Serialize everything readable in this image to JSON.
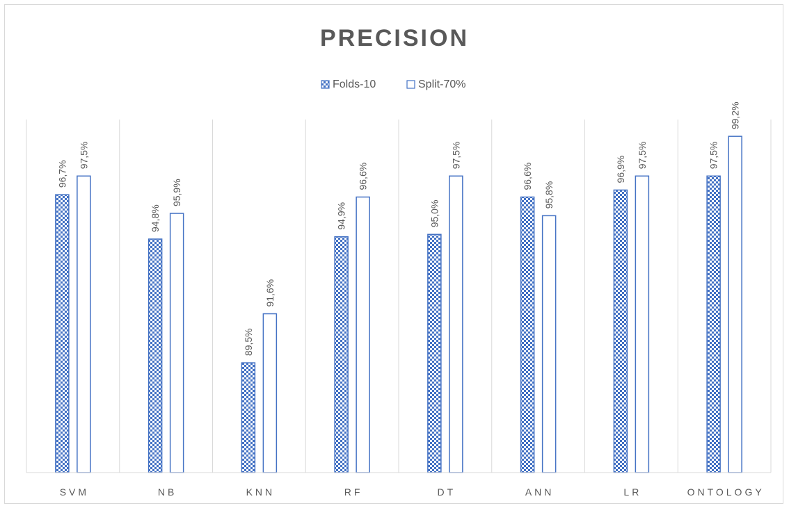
{
  "chart_data": {
    "type": "bar",
    "title": "PRECISION",
    "categories": [
      "SVM",
      "NB",
      "KNN",
      "RF",
      "DT",
      "ANN",
      "LR",
      "ONTOLOGY"
    ],
    "series": [
      {
        "name": "Folds-10",
        "values": [
          96.7,
          94.8,
          89.5,
          94.9,
          95.0,
          96.6,
          96.9,
          97.5
        ],
        "labels": [
          "96,7%",
          "94,8%",
          "89,5%",
          "94,9%",
          "95,0%",
          "96,6%",
          "96,9%",
          "97,5%"
        ],
        "pattern": "checkered",
        "color": "#4472c4"
      },
      {
        "name": "Split-70%",
        "values": [
          97.5,
          95.9,
          91.6,
          96.6,
          97.5,
          95.8,
          97.5,
          99.2
        ],
        "labels": [
          "97,5%",
          "95,9%",
          "91,6%",
          "96,6%",
          "97,5%",
          "95,8%",
          "97,5%",
          "99,2%"
        ],
        "pattern": "outline",
        "color": "#4472c4"
      }
    ],
    "xlabel": "",
    "ylabel": "",
    "ylim": [
      84.8,
      100
    ],
    "grid": "vertical-separators",
    "legend_position": "top"
  }
}
